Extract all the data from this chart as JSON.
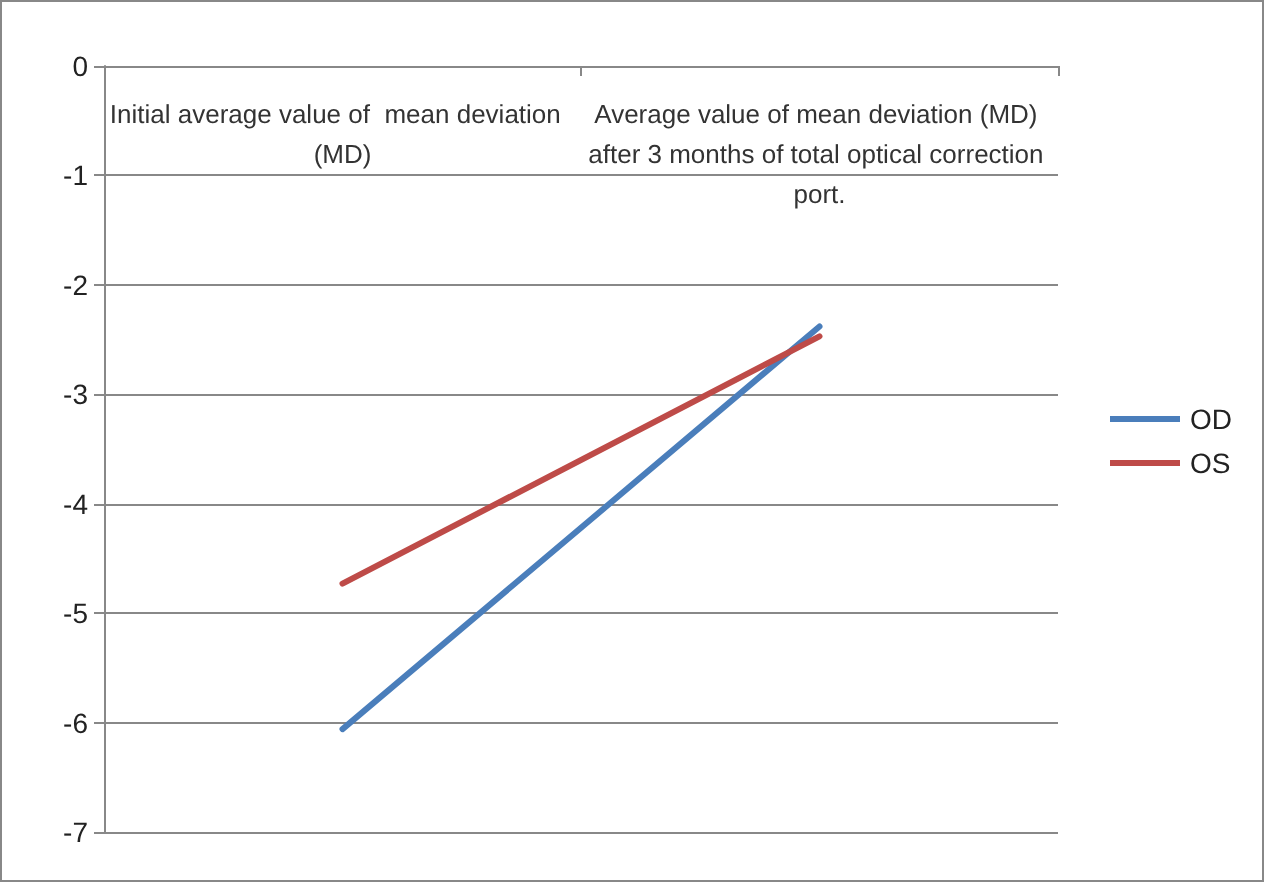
{
  "chart_data": {
    "type": "line",
    "categories": [
      "Initial average value of  mean deviation  (MD)",
      "Average value of mean deviation (MD) after 3 months of total optical correction port."
    ],
    "series": [
      {
        "name": "OD",
        "color": "#4a7ebb",
        "values": [
          -6.06,
          -2.38
        ]
      },
      {
        "name": "OS",
        "color": "#be4b48",
        "values": [
          -4.73,
          -2.47
        ]
      }
    ],
    "ylim": [
      -7,
      0
    ],
    "yticks": [
      -7,
      -6,
      -5,
      -4,
      -3,
      -2,
      -1,
      0
    ],
    "grid": "y",
    "legend": "right",
    "marker": "none"
  }
}
